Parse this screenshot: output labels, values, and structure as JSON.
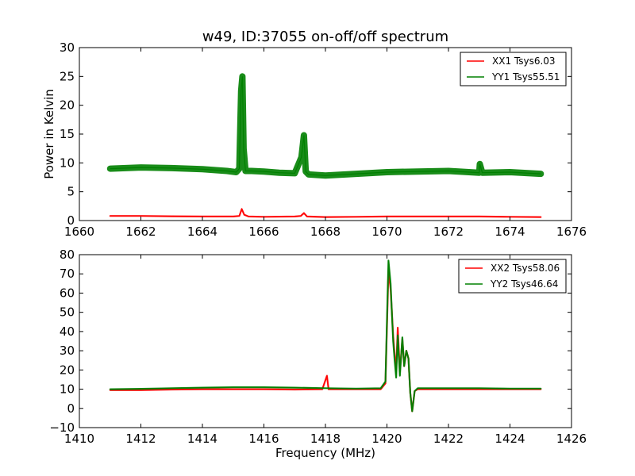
{
  "chart_data": [
    {
      "type": "line",
      "title": "w49, ID:37055 on-off/off spectrum",
      "xlabel": "",
      "ylabel": "Power in Kelvin",
      "xlim": [
        1660,
        1676
      ],
      "ylim": [
        0,
        30
      ],
      "xticks": [
        "1660",
        "1662",
        "1664",
        "1666",
        "1668",
        "1670",
        "1672",
        "1674",
        "1676"
      ],
      "yticks": [
        "0",
        "5",
        "10",
        "15",
        "20",
        "25",
        "30"
      ],
      "legend_position": "top-right",
      "series": [
        {
          "name": "XX1 Tsys6.03",
          "color": "#ff0000",
          "x": [
            1661,
            1662,
            1663,
            1664,
            1665,
            1665.2,
            1665.28,
            1665.36,
            1665.5,
            1666,
            1667,
            1667.2,
            1667.3,
            1667.4,
            1668,
            1669,
            1670,
            1671,
            1672,
            1673,
            1674,
            1675
          ],
          "y": [
            0.8,
            0.8,
            0.75,
            0.7,
            0.7,
            0.8,
            2.0,
            1.0,
            0.7,
            0.65,
            0.7,
            0.8,
            1.3,
            0.7,
            0.6,
            0.65,
            0.7,
            0.7,
            0.7,
            0.7,
            0.65,
            0.6
          ]
        },
        {
          "name": "YY1 Tsys55.51",
          "color": "#008000",
          "x": [
            1661,
            1662,
            1663,
            1664,
            1664.8,
            1665.1,
            1665.2,
            1665.26,
            1665.3,
            1665.34,
            1665.4,
            1665.6,
            1666,
            1666.5,
            1667,
            1667.22,
            1667.3,
            1667.36,
            1667.45,
            1668,
            1669,
            1670,
            1671,
            1672,
            1673,
            1673.02,
            1673.1,
            1674,
            1675
          ],
          "y": [
            9,
            9.2,
            9.1,
            8.9,
            8.6,
            8.4,
            9.0,
            22.5,
            25,
            12.5,
            8.6,
            8.6,
            8.5,
            8.3,
            8.2,
            11.0,
            14.8,
            8.5,
            8.0,
            7.8,
            8.1,
            8.4,
            8.5,
            8.6,
            8.3,
            9.8,
            8.3,
            8.4,
            8.1
          ]
        }
      ]
    },
    {
      "type": "line",
      "title": "",
      "xlabel": "Frequency (MHz)",
      "ylabel": "",
      "xlim": [
        1410,
        1426
      ],
      "ylim": [
        -10,
        80
      ],
      "xticks": [
        "1410",
        "1412",
        "1414",
        "1416",
        "1418",
        "1420",
        "1422",
        "1424",
        "1426"
      ],
      "yticks": [
        "−10",
        "0",
        "10",
        "20",
        "30",
        "40",
        "50",
        "60",
        "70",
        "80"
      ],
      "legend_position": "top-right",
      "series": [
        {
          "name": "XX2 Tsys58.06",
          "color": "#ff0000",
          "x": [
            1411,
            1412,
            1413,
            1414,
            1415,
            1416,
            1417,
            1417.9,
            1418.05,
            1418.1,
            1419,
            1419.8,
            1419.95,
            1420.05,
            1420.12,
            1420.2,
            1420.25,
            1420.3,
            1420.35,
            1420.42,
            1420.5,
            1420.56,
            1420.63,
            1420.7,
            1420.76,
            1420.82,
            1420.9,
            1421,
            1422,
            1423,
            1424,
            1425
          ],
          "y": [
            9.5,
            9.5,
            9.8,
            10,
            10,
            10,
            9.8,
            10,
            17,
            10,
            10,
            10,
            13,
            72,
            62,
            38,
            28,
            20,
            42,
            19,
            36,
            22,
            30,
            26,
            8,
            -1.5,
            9,
            10,
            10,
            10,
            10,
            10
          ]
        },
        {
          "name": "YY2 Tsys46.64",
          "color": "#008000",
          "x": [
            1411,
            1412,
            1413,
            1414,
            1415,
            1416,
            1417,
            1418,
            1419,
            1419.8,
            1419.95,
            1420.05,
            1420.12,
            1420.2,
            1420.25,
            1420.3,
            1420.35,
            1420.42,
            1420.5,
            1420.56,
            1420.63,
            1420.7,
            1420.76,
            1420.82,
            1420.9,
            1421,
            1422,
            1423,
            1424,
            1425
          ],
          "y": [
            10,
            10.2,
            10.5,
            10.8,
            11,
            11,
            10.8,
            10.5,
            10.3,
            10.5,
            14,
            77,
            65,
            35,
            25,
            16,
            38,
            17,
            37,
            22,
            30,
            26,
            8,
            -1.5,
            9,
            10.5,
            10.5,
            10.5,
            10.3,
            10.3
          ]
        }
      ]
    }
  ]
}
